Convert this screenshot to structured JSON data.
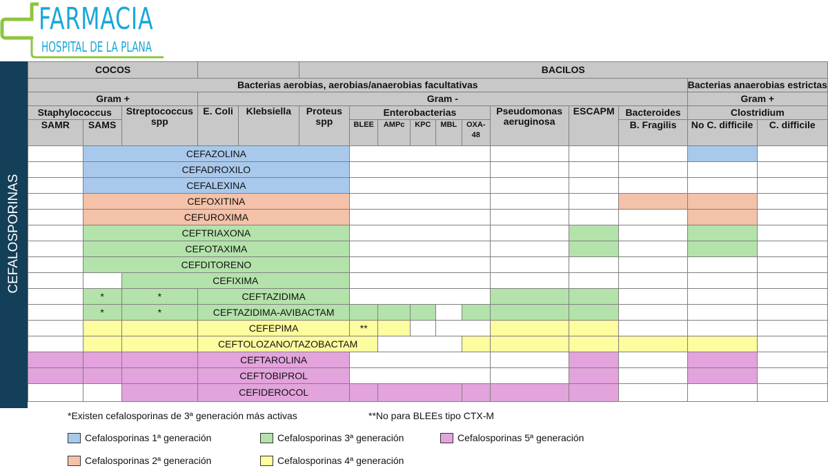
{
  "logo": {
    "title": "FARMACIA",
    "subtitle": "HOSPITAL DE LA PLANA"
  },
  "side_label": "CEFALOSPORINAS",
  "colors": {
    "gen1": "#a9c9ec",
    "gen2": "#f4c1a9",
    "gen3": "#b3e2aa",
    "gen4": "#fdfc9e",
    "gen5": "#e3a3dc",
    "header": "#c8c8c8",
    "sidebar": "#133f58"
  },
  "header": {
    "cocos": "COCOS",
    "bacilos": "BACILOS",
    "aerobias": "Bacterias aerobias, aerobias/anaerobias facultativas",
    "anaerobias": "Bacterias anaerobias estrictas",
    "gram_pos": "Gram +",
    "gram_neg": "Gram -",
    "gram_pos2": "Gram +",
    "staph": "Staphylococcus",
    "strep": "Streptococcus spp",
    "ecoli": "E. Coli",
    "klebsiella": "Klebsiella",
    "proteus": "Proteus spp",
    "entero": "Enterobacterias",
    "pseudo": "Pseudomonas aeruginosa",
    "escapm": "ESCAPM",
    "bacteroides": "Bacteroides",
    "clostridium": "Clostridium",
    "samr": "SAMR",
    "sams": "SAMS",
    "blee": "BLEE",
    "ampc": "AMPc",
    "kpc": "KPC",
    "mbl": "MBL",
    "oxa": "OXA-48",
    "bfragilis": "B. Fragilis",
    "no_cdiff": "No C. difficile",
    "cdiff": "C. difficile"
  },
  "drugs": [
    {
      "name": "CEFAZOLINA",
      "generation": 1
    },
    {
      "name": "CEFADROXILO",
      "generation": 1
    },
    {
      "name": "CEFALEXINA",
      "generation": 1
    },
    {
      "name": "CEFOXITINA",
      "generation": 2
    },
    {
      "name": "CEFUROXIMA",
      "generation": 2
    },
    {
      "name": "CEFTRIAXONA",
      "generation": 3
    },
    {
      "name": "CEFOTAXIMA",
      "generation": 3
    },
    {
      "name": "CEFDITORENO",
      "generation": 3
    },
    {
      "name": "CEFIXIMA",
      "generation": 3
    },
    {
      "name": "CEFTAZIDIMA",
      "generation": 3,
      "sams": "*",
      "strep": "*"
    },
    {
      "name": "CEFTAZIDIMA-AVIBACTAM",
      "generation": 3,
      "sams": "*",
      "strep": "*"
    },
    {
      "name": "CEFEPIMA",
      "generation": 4,
      "blee": "**"
    },
    {
      "name": "CEFTOLOZANO/TAZOBACTAM",
      "generation": 4
    },
    {
      "name": "CEFTAROLINA",
      "generation": 5
    },
    {
      "name": "CEFTOBIPROL",
      "generation": 5
    },
    {
      "name": "CEFIDEROCOL",
      "generation": 5
    }
  ],
  "notes": {
    "note1": "*Existen cefalosporinas de 3ª generación más activas",
    "note2": "**No para BLEEs tipo CTX-M"
  },
  "legend": [
    {
      "label": "Cefalosporinas 1ª generación",
      "color": "#a9c9ec"
    },
    {
      "label": "Cefalosporinas 2ª generación",
      "color": "#f4c1a9"
    },
    {
      "label": "Cefalosporinas 3ª generación",
      "color": "#b3e2aa"
    },
    {
      "label": "Cefalosporinas 4ª generación",
      "color": "#fdfc9e"
    },
    {
      "label": "Cefalosporinas 5ª generación",
      "color": "#e3a3dc"
    }
  ]
}
